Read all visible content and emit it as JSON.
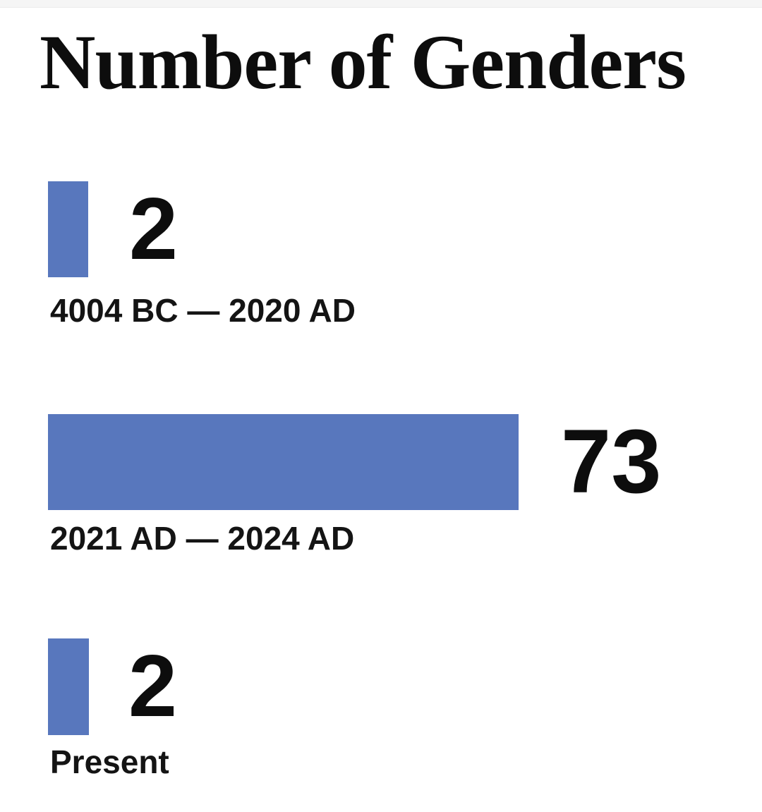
{
  "title": "Number of Genders",
  "chart_data": {
    "type": "bar",
    "orientation": "horizontal",
    "title": "Number of Genders",
    "categories": [
      "4004 BC — 2020 AD",
      "2021 AD — 2024 AD",
      "Present"
    ],
    "values": [
      2,
      73,
      2
    ],
    "value_labels": [
      "2",
      "73",
      "2"
    ],
    "bar_color": "#5877bd",
    "text_color": "#0d0d0d",
    "background_color": "#ffffff",
    "grid": false,
    "legend": "none",
    "axes": "none",
    "note": "bar lengths not drawn to linear scale; small bars exaggerated"
  },
  "rows": [
    {
      "value": "2",
      "caption": "4004 BC — 2020 AD"
    },
    {
      "value": "73",
      "caption": "2021 AD — 2024 AD"
    },
    {
      "value": "2",
      "caption": "Present"
    }
  ]
}
